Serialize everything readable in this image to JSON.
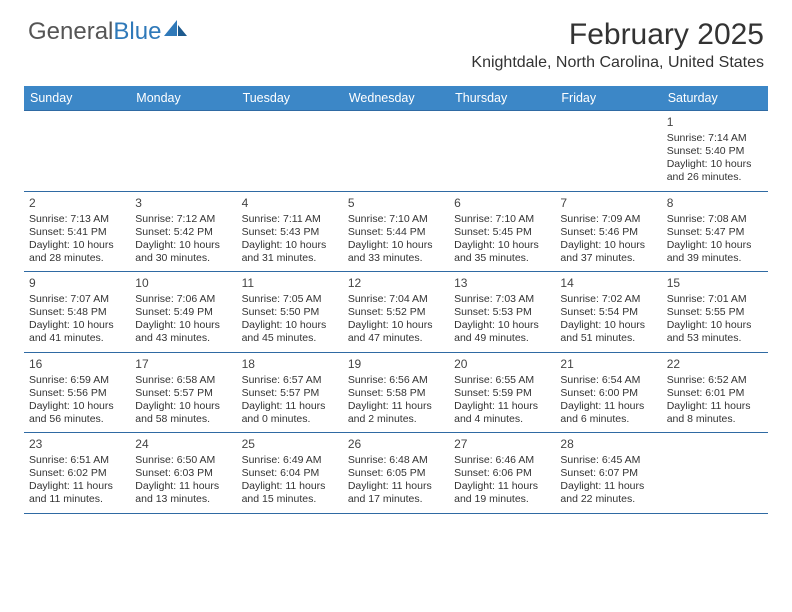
{
  "brand": {
    "part1": "General",
    "part2": "Blue"
  },
  "title": "February 2025",
  "location": "Knightdale, North Carolina, United States",
  "colors": {
    "header_bg": "#3c87c7",
    "border": "#2f6aa3",
    "brand_blue": "#2f79b9",
    "text": "#333333",
    "background": "#ffffff"
  },
  "day_names": [
    "Sunday",
    "Monday",
    "Tuesday",
    "Wednesday",
    "Thursday",
    "Friday",
    "Saturday"
  ],
  "weeks": [
    [
      {
        "num": "",
        "sunrise": "",
        "sunset": "",
        "daylight": ""
      },
      {
        "num": "",
        "sunrise": "",
        "sunset": "",
        "daylight": ""
      },
      {
        "num": "",
        "sunrise": "",
        "sunset": "",
        "daylight": ""
      },
      {
        "num": "",
        "sunrise": "",
        "sunset": "",
        "daylight": ""
      },
      {
        "num": "",
        "sunrise": "",
        "sunset": "",
        "daylight": ""
      },
      {
        "num": "",
        "sunrise": "",
        "sunset": "",
        "daylight": ""
      },
      {
        "num": "1",
        "sunrise": "Sunrise: 7:14 AM",
        "sunset": "Sunset: 5:40 PM",
        "daylight": "Daylight: 10 hours and 26 minutes."
      }
    ],
    [
      {
        "num": "2",
        "sunrise": "Sunrise: 7:13 AM",
        "sunset": "Sunset: 5:41 PM",
        "daylight": "Daylight: 10 hours and 28 minutes."
      },
      {
        "num": "3",
        "sunrise": "Sunrise: 7:12 AM",
        "sunset": "Sunset: 5:42 PM",
        "daylight": "Daylight: 10 hours and 30 minutes."
      },
      {
        "num": "4",
        "sunrise": "Sunrise: 7:11 AM",
        "sunset": "Sunset: 5:43 PM",
        "daylight": "Daylight: 10 hours and 31 minutes."
      },
      {
        "num": "5",
        "sunrise": "Sunrise: 7:10 AM",
        "sunset": "Sunset: 5:44 PM",
        "daylight": "Daylight: 10 hours and 33 minutes."
      },
      {
        "num": "6",
        "sunrise": "Sunrise: 7:10 AM",
        "sunset": "Sunset: 5:45 PM",
        "daylight": "Daylight: 10 hours and 35 minutes."
      },
      {
        "num": "7",
        "sunrise": "Sunrise: 7:09 AM",
        "sunset": "Sunset: 5:46 PM",
        "daylight": "Daylight: 10 hours and 37 minutes."
      },
      {
        "num": "8",
        "sunrise": "Sunrise: 7:08 AM",
        "sunset": "Sunset: 5:47 PM",
        "daylight": "Daylight: 10 hours and 39 minutes."
      }
    ],
    [
      {
        "num": "9",
        "sunrise": "Sunrise: 7:07 AM",
        "sunset": "Sunset: 5:48 PM",
        "daylight": "Daylight: 10 hours and 41 minutes."
      },
      {
        "num": "10",
        "sunrise": "Sunrise: 7:06 AM",
        "sunset": "Sunset: 5:49 PM",
        "daylight": "Daylight: 10 hours and 43 minutes."
      },
      {
        "num": "11",
        "sunrise": "Sunrise: 7:05 AM",
        "sunset": "Sunset: 5:50 PM",
        "daylight": "Daylight: 10 hours and 45 minutes."
      },
      {
        "num": "12",
        "sunrise": "Sunrise: 7:04 AM",
        "sunset": "Sunset: 5:52 PM",
        "daylight": "Daylight: 10 hours and 47 minutes."
      },
      {
        "num": "13",
        "sunrise": "Sunrise: 7:03 AM",
        "sunset": "Sunset: 5:53 PM",
        "daylight": "Daylight: 10 hours and 49 minutes."
      },
      {
        "num": "14",
        "sunrise": "Sunrise: 7:02 AM",
        "sunset": "Sunset: 5:54 PM",
        "daylight": "Daylight: 10 hours and 51 minutes."
      },
      {
        "num": "15",
        "sunrise": "Sunrise: 7:01 AM",
        "sunset": "Sunset: 5:55 PM",
        "daylight": "Daylight: 10 hours and 53 minutes."
      }
    ],
    [
      {
        "num": "16",
        "sunrise": "Sunrise: 6:59 AM",
        "sunset": "Sunset: 5:56 PM",
        "daylight": "Daylight: 10 hours and 56 minutes."
      },
      {
        "num": "17",
        "sunrise": "Sunrise: 6:58 AM",
        "sunset": "Sunset: 5:57 PM",
        "daylight": "Daylight: 10 hours and 58 minutes."
      },
      {
        "num": "18",
        "sunrise": "Sunrise: 6:57 AM",
        "sunset": "Sunset: 5:57 PM",
        "daylight": "Daylight: 11 hours and 0 minutes."
      },
      {
        "num": "19",
        "sunrise": "Sunrise: 6:56 AM",
        "sunset": "Sunset: 5:58 PM",
        "daylight": "Daylight: 11 hours and 2 minutes."
      },
      {
        "num": "20",
        "sunrise": "Sunrise: 6:55 AM",
        "sunset": "Sunset: 5:59 PM",
        "daylight": "Daylight: 11 hours and 4 minutes."
      },
      {
        "num": "21",
        "sunrise": "Sunrise: 6:54 AM",
        "sunset": "Sunset: 6:00 PM",
        "daylight": "Daylight: 11 hours and 6 minutes."
      },
      {
        "num": "22",
        "sunrise": "Sunrise: 6:52 AM",
        "sunset": "Sunset: 6:01 PM",
        "daylight": "Daylight: 11 hours and 8 minutes."
      }
    ],
    [
      {
        "num": "23",
        "sunrise": "Sunrise: 6:51 AM",
        "sunset": "Sunset: 6:02 PM",
        "daylight": "Daylight: 11 hours and 11 minutes."
      },
      {
        "num": "24",
        "sunrise": "Sunrise: 6:50 AM",
        "sunset": "Sunset: 6:03 PM",
        "daylight": "Daylight: 11 hours and 13 minutes."
      },
      {
        "num": "25",
        "sunrise": "Sunrise: 6:49 AM",
        "sunset": "Sunset: 6:04 PM",
        "daylight": "Daylight: 11 hours and 15 minutes."
      },
      {
        "num": "26",
        "sunrise": "Sunrise: 6:48 AM",
        "sunset": "Sunset: 6:05 PM",
        "daylight": "Daylight: 11 hours and 17 minutes."
      },
      {
        "num": "27",
        "sunrise": "Sunrise: 6:46 AM",
        "sunset": "Sunset: 6:06 PM",
        "daylight": "Daylight: 11 hours and 19 minutes."
      },
      {
        "num": "28",
        "sunrise": "Sunrise: 6:45 AM",
        "sunset": "Sunset: 6:07 PM",
        "daylight": "Daylight: 11 hours and 22 minutes."
      },
      {
        "num": "",
        "sunrise": "",
        "sunset": "",
        "daylight": ""
      }
    ]
  ]
}
